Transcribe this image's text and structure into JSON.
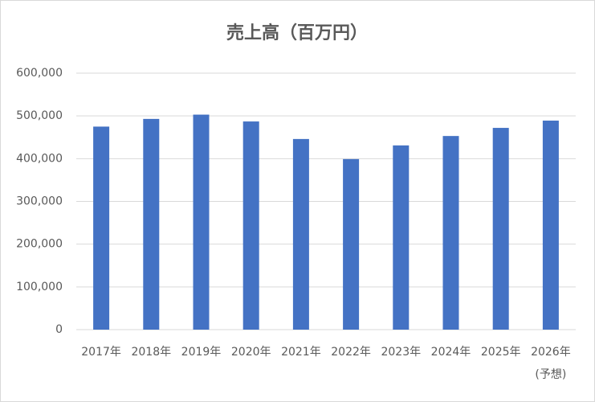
{
  "chart_data": {
    "type": "bar",
    "title": "売上高（百万円）",
    "categories": [
      "2017年",
      "2018年",
      "2019年",
      "2020年",
      "2021年",
      "2022年",
      "2023年",
      "2024年",
      "2025年",
      "2026年"
    ],
    "category_note": "(予想)",
    "values": [
      475000,
      493000,
      503000,
      487000,
      446000,
      399000,
      431000,
      453000,
      472000,
      489000
    ],
    "color": "#4472c4",
    "ylim": [
      0,
      600000
    ],
    "yticks": [
      0,
      {
        "value": 100000,
        "label": "100,000"
      },
      {
        "value": 200000,
        "label": "200,000"
      },
      {
        "value": 300000,
        "label": "300,000"
      },
      {
        "value": 400000,
        "label": "400,000"
      },
      {
        "value": 500000,
        "label": "500,000"
      },
      {
        "value": 600000,
        "label": "600,000"
      }
    ],
    "grid": true
  }
}
